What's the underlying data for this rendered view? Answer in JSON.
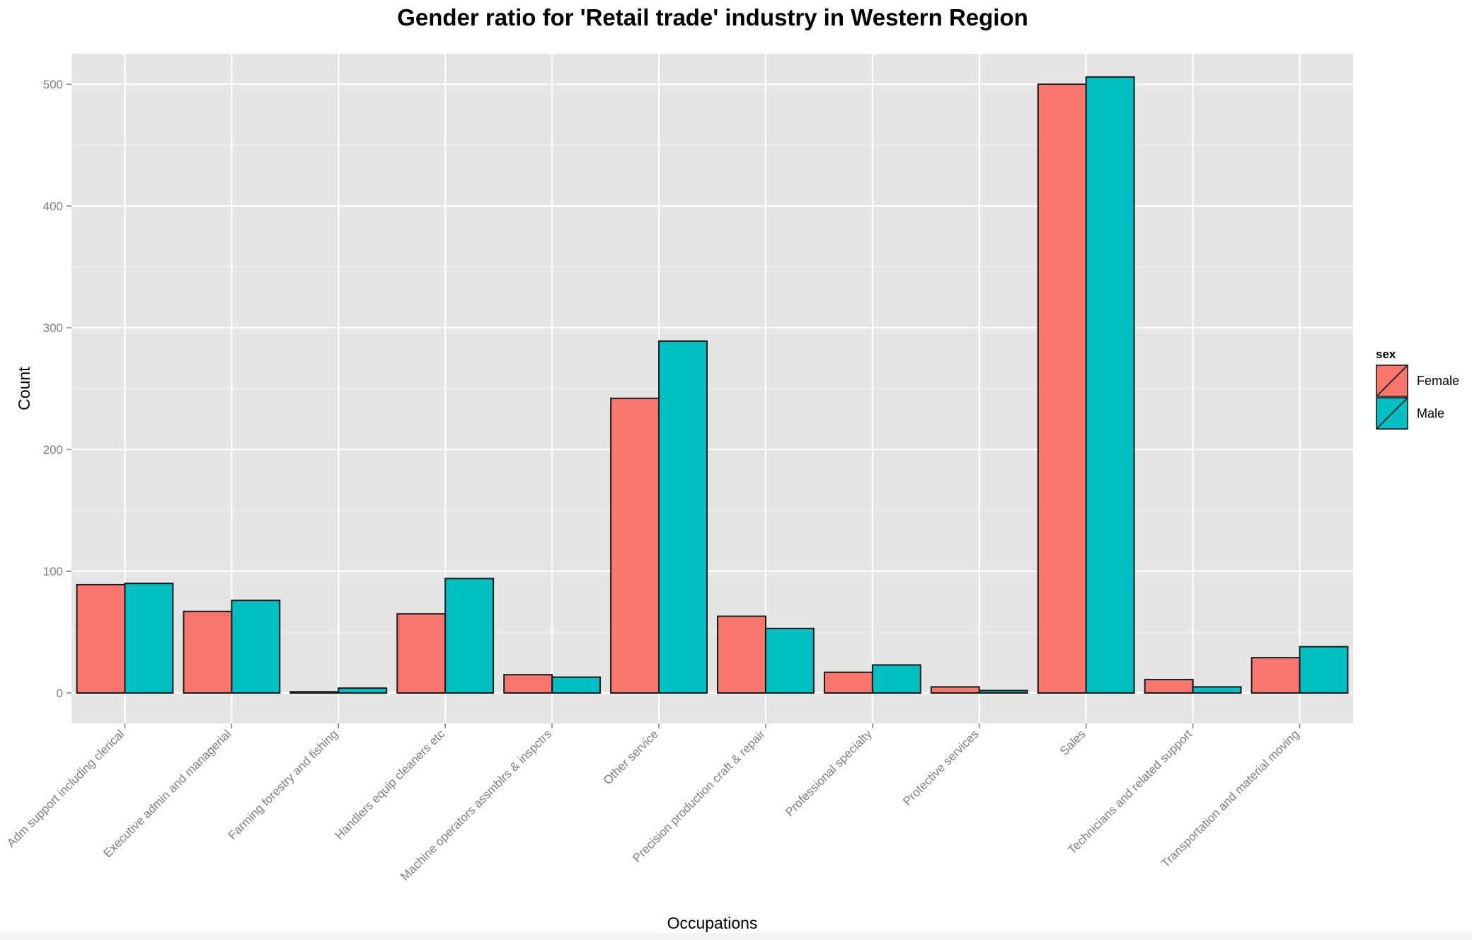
{
  "chart_data": {
    "type": "bar",
    "title": "Gender ratio for 'Retail trade' industry in Western Region",
    "xlabel": "Occupations",
    "ylabel": "Count",
    "ylim": [
      -25,
      525
    ],
    "yticks": [
      0,
      100,
      200,
      300,
      400,
      500
    ],
    "grid": true,
    "legend": {
      "title": "sex",
      "position": "right"
    },
    "categories": [
      "Adm support including clerical",
      "Executive admin and managerial",
      "Farming forestry and fishing",
      "Handlers equip cleaners etc",
      "Machine operators assmblrs & inspctrs",
      "Other service",
      "Precision production craft & repair",
      "Professional specialty",
      "Protective services",
      "Sales",
      "Technicians and related support",
      "Transportation and material moving"
    ],
    "series": [
      {
        "name": "Female",
        "color": "#F8766D",
        "values": [
          89,
          67,
          1,
          65,
          15,
          242,
          63,
          17,
          5,
          500,
          11,
          29
        ]
      },
      {
        "name": "Male",
        "color": "#00BFC4",
        "values": [
          90,
          76,
          4,
          94,
          13,
          289,
          53,
          23,
          2,
          506,
          5,
          38
        ]
      }
    ]
  }
}
